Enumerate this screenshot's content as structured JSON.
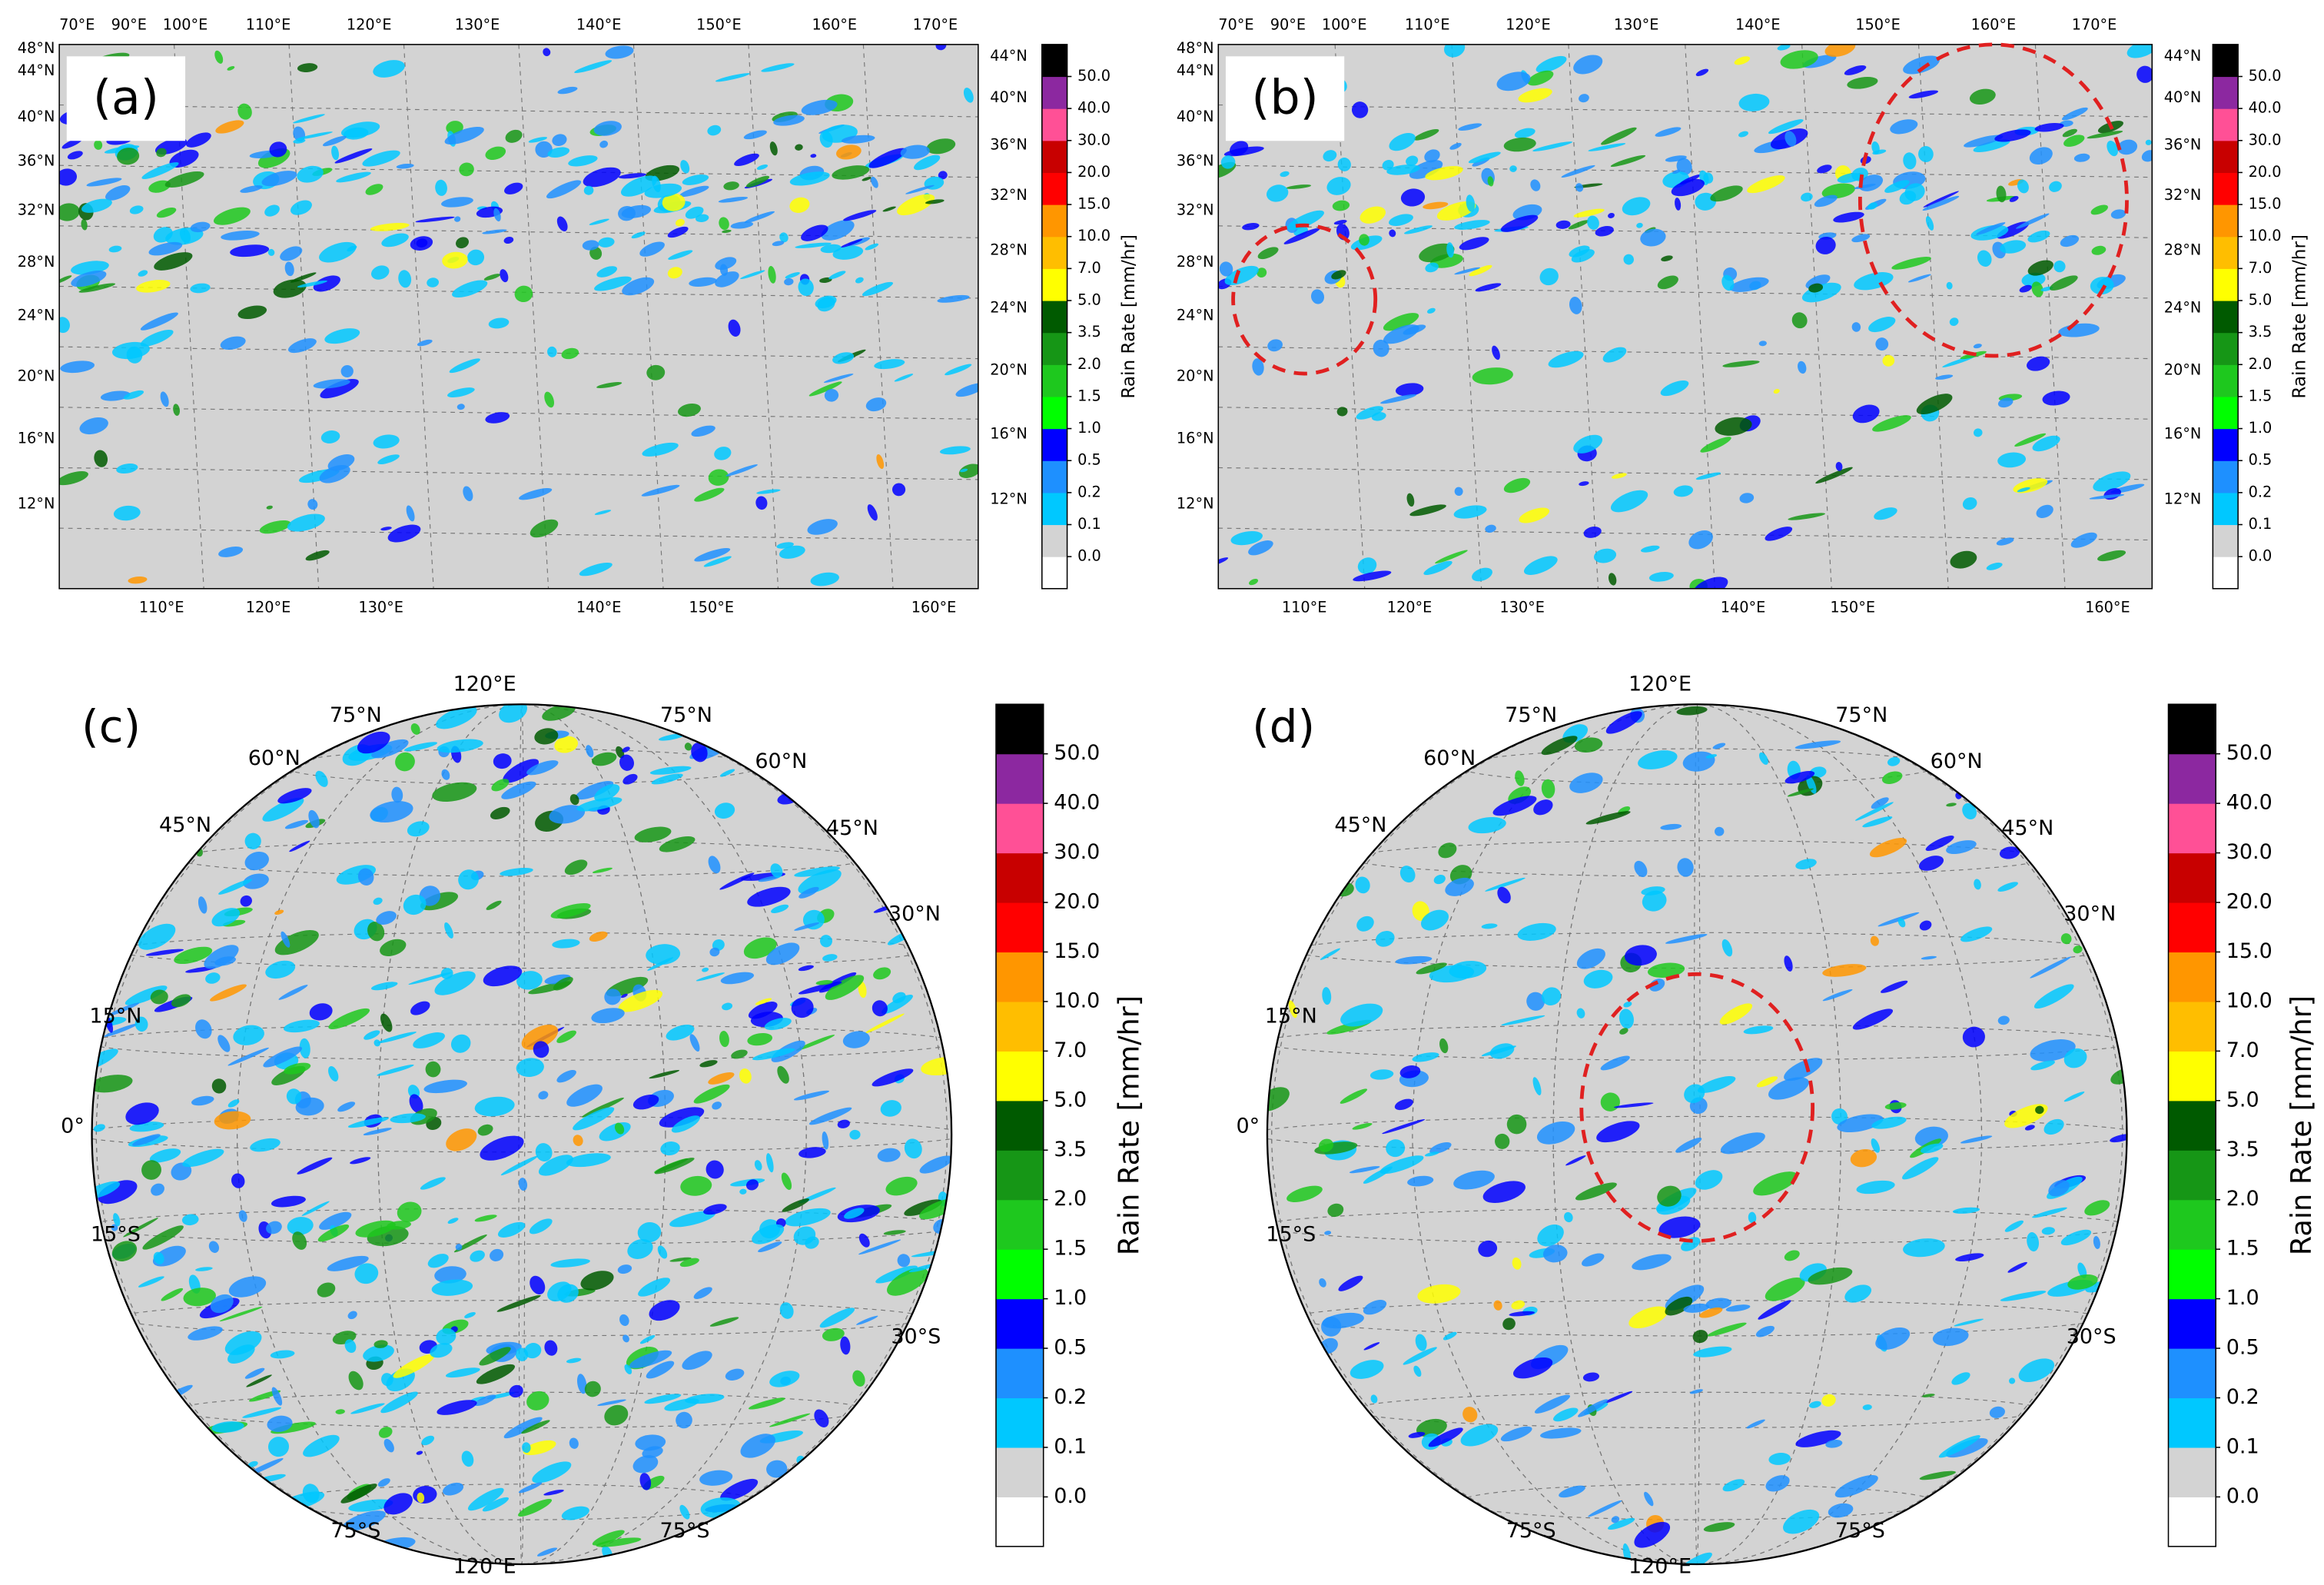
{
  "panels": [
    {
      "label": "(a)",
      "top_labels": [
        "70°E",
        "90°E",
        "100°E",
        "110°E",
        "120°E",
        "130°E",
        "140°E",
        "150°E",
        "160°E",
        "170°E"
      ],
      "bottom_labels": [
        "110°E",
        "120°E",
        "130°E",
        "140°E",
        "150°E",
        "160°E"
      ],
      "left_labels": [
        "48°N",
        "44°N",
        "40°N",
        "36°N",
        "32°N",
        "28°N",
        "24°N",
        "20°N",
        "16°N",
        "12°N"
      ],
      "right_labels": [
        "44°N",
        "40°N",
        "36°N",
        "32°N",
        "28°N",
        "24°N",
        "20°N",
        "16°N",
        "12°N"
      ]
    },
    {
      "label": "(b)",
      "top_labels": [
        "70°E",
        "90°E",
        "100°E",
        "110°E",
        "120°E",
        "130°E",
        "140°E",
        "150°E",
        "160°E",
        "170°E"
      ],
      "bottom_labels": [
        "110°E",
        "120°E",
        "130°E",
        "140°E",
        "150°E",
        "160°E"
      ],
      "left_labels": [
        "48°N",
        "44°N",
        "40°N",
        "36°N",
        "32°N",
        "28°N",
        "24°N",
        "20°N",
        "16°N",
        "12°N"
      ],
      "right_labels": [
        "44°N",
        "40°N",
        "36°N",
        "32°N",
        "28°N",
        "24°N",
        "20°N",
        "16°N",
        "12°N"
      ]
    },
    {
      "label": "(c)",
      "grid_labels": [
        "120°E",
        "75°N",
        "75°N",
        "60°N",
        "60°N",
        "45°N",
        "45°N",
        "30°N",
        "15°N",
        "0°",
        "15°S",
        "30°S",
        "75°S",
        "75°S",
        "120°E"
      ]
    },
    {
      "label": "(d)",
      "grid_labels": [
        "120°E",
        "75°N",
        "75°N",
        "60°N",
        "60°N",
        "45°N",
        "45°N",
        "30°N",
        "15°N",
        "0°",
        "15°S",
        "30°S",
        "75°S",
        "75°S",
        "120°E"
      ]
    }
  ],
  "colorbar": {
    "label": "Rain Rate [mm/hr]",
    "ticks": [
      "0.0",
      "0.1",
      "0.2",
      "0.5",
      "1.0",
      "1.5",
      "2.0",
      "3.5",
      "5.0",
      "7.0",
      "10.0",
      "15.0",
      "20.0",
      "30.0",
      "40.0",
      "50.0"
    ],
    "colors": [
      "#ffffff",
      "#d3d3d3",
      "#00c8ff",
      "#1e90ff",
      "#0000ff",
      "#00ff00",
      "#1ec81e",
      "#169616",
      "#005a00",
      "#ffff00",
      "#ffbe00",
      "#ff9600",
      "#ff0000",
      "#c80000",
      "#ff5096",
      "#8c28a0",
      "#000000"
    ]
  }
}
